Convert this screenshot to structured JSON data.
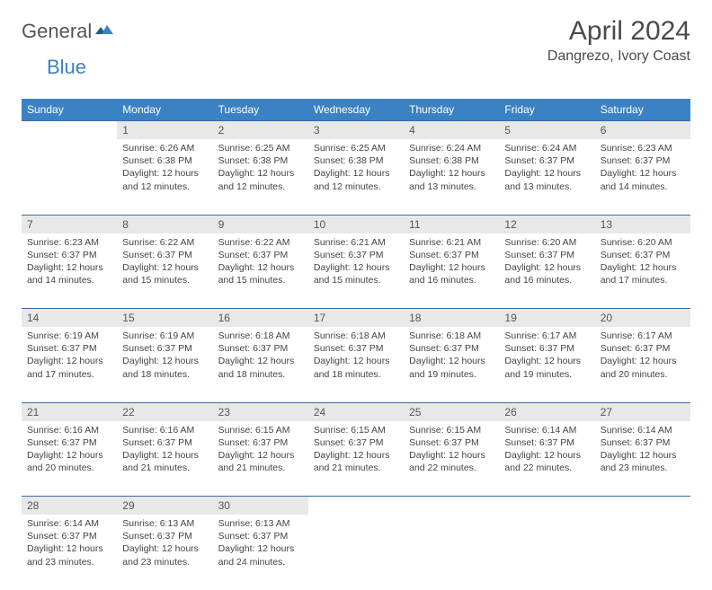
{
  "logo": {
    "part1": "General",
    "part2": "Blue"
  },
  "title": "April 2024",
  "location": "Dangrezo, Ivory Coast",
  "colors": {
    "header_bg": "#3b82c4",
    "header_text": "#ffffff",
    "daynum_bg": "#e8e8e8",
    "row_border": "#3b6ea0",
    "text": "#444444",
    "title_text": "#4a4a4a"
  },
  "day_headers": [
    "Sunday",
    "Monday",
    "Tuesday",
    "Wednesday",
    "Thursday",
    "Friday",
    "Saturday"
  ],
  "weeks": [
    {
      "nums": [
        "",
        "1",
        "2",
        "3",
        "4",
        "5",
        "6"
      ],
      "cells": [
        null,
        {
          "sunrise": "Sunrise: 6:26 AM",
          "sunset": "Sunset: 6:38 PM",
          "daylight": "Daylight: 12 hours and 12 minutes."
        },
        {
          "sunrise": "Sunrise: 6:25 AM",
          "sunset": "Sunset: 6:38 PM",
          "daylight": "Daylight: 12 hours and 12 minutes."
        },
        {
          "sunrise": "Sunrise: 6:25 AM",
          "sunset": "Sunset: 6:38 PM",
          "daylight": "Daylight: 12 hours and 12 minutes."
        },
        {
          "sunrise": "Sunrise: 6:24 AM",
          "sunset": "Sunset: 6:38 PM",
          "daylight": "Daylight: 12 hours and 13 minutes."
        },
        {
          "sunrise": "Sunrise: 6:24 AM",
          "sunset": "Sunset: 6:37 PM",
          "daylight": "Daylight: 12 hours and 13 minutes."
        },
        {
          "sunrise": "Sunrise: 6:23 AM",
          "sunset": "Sunset: 6:37 PM",
          "daylight": "Daylight: 12 hours and 14 minutes."
        }
      ]
    },
    {
      "nums": [
        "7",
        "8",
        "9",
        "10",
        "11",
        "12",
        "13"
      ],
      "cells": [
        {
          "sunrise": "Sunrise: 6:23 AM",
          "sunset": "Sunset: 6:37 PM",
          "daylight": "Daylight: 12 hours and 14 minutes."
        },
        {
          "sunrise": "Sunrise: 6:22 AM",
          "sunset": "Sunset: 6:37 PM",
          "daylight": "Daylight: 12 hours and 15 minutes."
        },
        {
          "sunrise": "Sunrise: 6:22 AM",
          "sunset": "Sunset: 6:37 PM",
          "daylight": "Daylight: 12 hours and 15 minutes."
        },
        {
          "sunrise": "Sunrise: 6:21 AM",
          "sunset": "Sunset: 6:37 PM",
          "daylight": "Daylight: 12 hours and 15 minutes."
        },
        {
          "sunrise": "Sunrise: 6:21 AM",
          "sunset": "Sunset: 6:37 PM",
          "daylight": "Daylight: 12 hours and 16 minutes."
        },
        {
          "sunrise": "Sunrise: 6:20 AM",
          "sunset": "Sunset: 6:37 PM",
          "daylight": "Daylight: 12 hours and 16 minutes."
        },
        {
          "sunrise": "Sunrise: 6:20 AM",
          "sunset": "Sunset: 6:37 PM",
          "daylight": "Daylight: 12 hours and 17 minutes."
        }
      ]
    },
    {
      "nums": [
        "14",
        "15",
        "16",
        "17",
        "18",
        "19",
        "20"
      ],
      "cells": [
        {
          "sunrise": "Sunrise: 6:19 AM",
          "sunset": "Sunset: 6:37 PM",
          "daylight": "Daylight: 12 hours and 17 minutes."
        },
        {
          "sunrise": "Sunrise: 6:19 AM",
          "sunset": "Sunset: 6:37 PM",
          "daylight": "Daylight: 12 hours and 18 minutes."
        },
        {
          "sunrise": "Sunrise: 6:18 AM",
          "sunset": "Sunset: 6:37 PM",
          "daylight": "Daylight: 12 hours and 18 minutes."
        },
        {
          "sunrise": "Sunrise: 6:18 AM",
          "sunset": "Sunset: 6:37 PM",
          "daylight": "Daylight: 12 hours and 18 minutes."
        },
        {
          "sunrise": "Sunrise: 6:18 AM",
          "sunset": "Sunset: 6:37 PM",
          "daylight": "Daylight: 12 hours and 19 minutes."
        },
        {
          "sunrise": "Sunrise: 6:17 AM",
          "sunset": "Sunset: 6:37 PM",
          "daylight": "Daylight: 12 hours and 19 minutes."
        },
        {
          "sunrise": "Sunrise: 6:17 AM",
          "sunset": "Sunset: 6:37 PM",
          "daylight": "Daylight: 12 hours and 20 minutes."
        }
      ]
    },
    {
      "nums": [
        "21",
        "22",
        "23",
        "24",
        "25",
        "26",
        "27"
      ],
      "cells": [
        {
          "sunrise": "Sunrise: 6:16 AM",
          "sunset": "Sunset: 6:37 PM",
          "daylight": "Daylight: 12 hours and 20 minutes."
        },
        {
          "sunrise": "Sunrise: 6:16 AM",
          "sunset": "Sunset: 6:37 PM",
          "daylight": "Daylight: 12 hours and 21 minutes."
        },
        {
          "sunrise": "Sunrise: 6:15 AM",
          "sunset": "Sunset: 6:37 PM",
          "daylight": "Daylight: 12 hours and 21 minutes."
        },
        {
          "sunrise": "Sunrise: 6:15 AM",
          "sunset": "Sunset: 6:37 PM",
          "daylight": "Daylight: 12 hours and 21 minutes."
        },
        {
          "sunrise": "Sunrise: 6:15 AM",
          "sunset": "Sunset: 6:37 PM",
          "daylight": "Daylight: 12 hours and 22 minutes."
        },
        {
          "sunrise": "Sunrise: 6:14 AM",
          "sunset": "Sunset: 6:37 PM",
          "daylight": "Daylight: 12 hours and 22 minutes."
        },
        {
          "sunrise": "Sunrise: 6:14 AM",
          "sunset": "Sunset: 6:37 PM",
          "daylight": "Daylight: 12 hours and 23 minutes."
        }
      ]
    },
    {
      "nums": [
        "28",
        "29",
        "30",
        "",
        "",
        "",
        ""
      ],
      "cells": [
        {
          "sunrise": "Sunrise: 6:14 AM",
          "sunset": "Sunset: 6:37 PM",
          "daylight": "Daylight: 12 hours and 23 minutes."
        },
        {
          "sunrise": "Sunrise: 6:13 AM",
          "sunset": "Sunset: 6:37 PM",
          "daylight": "Daylight: 12 hours and 23 minutes."
        },
        {
          "sunrise": "Sunrise: 6:13 AM",
          "sunset": "Sunset: 6:37 PM",
          "daylight": "Daylight: 12 hours and 24 minutes."
        },
        null,
        null,
        null,
        null
      ]
    }
  ]
}
